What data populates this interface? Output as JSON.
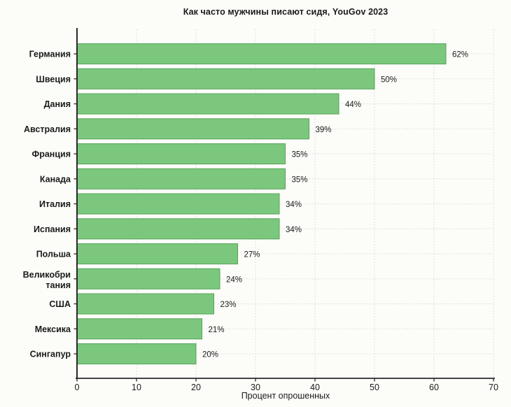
{
  "chart_data": {
    "type": "bar",
    "orientation": "horizontal",
    "title": "Как часто мужчины писают сидя, YouGov 2023",
    "xlabel": "Процент опрошенных",
    "categories": [
      "Германия",
      "Швеция",
      "Дания",
      "Австралия",
      "Франция",
      "Канада",
      "Италия",
      "Испания",
      "Польша",
      "Великобри\nтания",
      "США",
      "Мексика",
      "Сингапур"
    ],
    "values": [
      62,
      50,
      44,
      39,
      35,
      35,
      34,
      34,
      27,
      24,
      23,
      21,
      20
    ],
    "value_labels": [
      "62%",
      "50%",
      "44%",
      "39%",
      "35%",
      "35%",
      "34%",
      "34%",
      "27%",
      "24%",
      "23%",
      "21%",
      "20%"
    ],
    "xlim": [
      0,
      70
    ],
    "xticks": [
      0,
      10,
      20,
      30,
      40,
      50,
      60,
      70
    ],
    "grid": true,
    "legend": null,
    "colors": {
      "bar_fill": "#7cc77e",
      "bar_border": "#54a457",
      "grid": "#d4d4d4",
      "axis": "#2a2a2a",
      "text": "#1a1a1a"
    }
  }
}
